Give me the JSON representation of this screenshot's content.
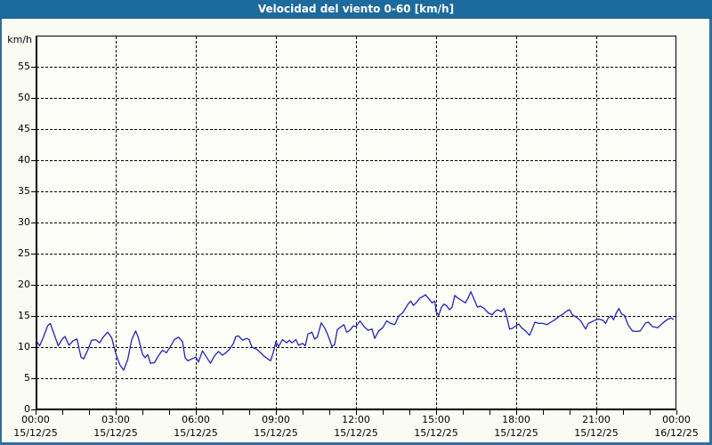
{
  "window": {
    "title": "Velocidad del viento 0-60 [km/h]"
  },
  "colors": {
    "titlebar_bg": "#1d6a9d",
    "frame_border": "#2e6fa3",
    "page_bg": "#fafbf2",
    "plot_bg": "#fefef9",
    "line": "#2121b8",
    "grid": "#000000",
    "title_text": "#ffffff",
    "label_text": "#000000"
  },
  "chart_data": {
    "type": "line",
    "title": "Velocidad del viento 0-60 [km/h]",
    "ylabel": "km/h",
    "ylim": [
      0,
      60
    ],
    "ytick_values": [
      0,
      5,
      10,
      15,
      20,
      25,
      30,
      35,
      40,
      45,
      50,
      55
    ],
    "x_hours_range": [
      0,
      24
    ],
    "minor_tick_every_hours": 1,
    "major_tick_every_hours": 3,
    "grid": "dashed",
    "legend_position": "none",
    "xticks": [
      {
        "hour": 0,
        "time": "00:00",
        "date": "15/12/25"
      },
      {
        "hour": 3,
        "time": "03:00",
        "date": "15/12/25"
      },
      {
        "hour": 6,
        "time": "06:00",
        "date": "15/12/25"
      },
      {
        "hour": 9,
        "time": "09:00",
        "date": "15/12/25"
      },
      {
        "hour": 12,
        "time": "12:00",
        "date": "15/12/25"
      },
      {
        "hour": 15,
        "time": "15:00",
        "date": "15/12/25"
      },
      {
        "hour": 18,
        "time": "18:00",
        "date": "15/12/25"
      },
      {
        "hour": 21,
        "time": "21:00",
        "date": "15/12/25"
      },
      {
        "hour": 24,
        "time": "00:00",
        "date": "16/12/25"
      }
    ],
    "series": [
      {
        "name": "Velocidad del viento",
        "units": "km/h",
        "points": [
          [
            0.0,
            11.2
          ],
          [
            0.15,
            10.2
          ],
          [
            0.3,
            11.7
          ],
          [
            0.45,
            13.4
          ],
          [
            0.55,
            13.8
          ],
          [
            0.7,
            12.0
          ],
          [
            0.85,
            10.2
          ],
          [
            1.0,
            11.3
          ],
          [
            1.1,
            11.7
          ],
          [
            1.25,
            10.3
          ],
          [
            1.4,
            11.0
          ],
          [
            1.55,
            11.3
          ],
          [
            1.7,
            8.4
          ],
          [
            1.8,
            8.1
          ],
          [
            1.95,
            9.5
          ],
          [
            2.1,
            11.1
          ],
          [
            2.25,
            11.2
          ],
          [
            2.4,
            10.7
          ],
          [
            2.55,
            11.7
          ],
          [
            2.7,
            12.4
          ],
          [
            2.85,
            11.5
          ],
          [
            3.0,
            9.0
          ],
          [
            3.15,
            7.2
          ],
          [
            3.3,
            6.3
          ],
          [
            3.45,
            8.0
          ],
          [
            3.6,
            11.2
          ],
          [
            3.75,
            12.6
          ],
          [
            3.85,
            11.5
          ],
          [
            4.0,
            8.9
          ],
          [
            4.1,
            8.3
          ],
          [
            4.2,
            8.8
          ],
          [
            4.3,
            7.4
          ],
          [
            4.45,
            7.5
          ],
          [
            4.6,
            8.6
          ],
          [
            4.75,
            9.5
          ],
          [
            4.9,
            9.1
          ],
          [
            5.05,
            10.1
          ],
          [
            5.2,
            11.2
          ],
          [
            5.35,
            11.6
          ],
          [
            5.5,
            10.9
          ],
          [
            5.6,
            8.3
          ],
          [
            5.7,
            7.8
          ],
          [
            5.85,
            8.1
          ],
          [
            6.0,
            8.4
          ],
          [
            6.1,
            7.6
          ],
          [
            6.25,
            9.4
          ],
          [
            6.4,
            8.4
          ],
          [
            6.55,
            7.4
          ],
          [
            6.7,
            8.6
          ],
          [
            6.85,
            9.3
          ],
          [
            7.0,
            8.7
          ],
          [
            7.1,
            9.0
          ],
          [
            7.25,
            9.6
          ],
          [
            7.4,
            10.5
          ],
          [
            7.5,
            11.7
          ],
          [
            7.6,
            11.8
          ],
          [
            7.75,
            11.1
          ],
          [
            7.9,
            11.4
          ],
          [
            8.0,
            11.2
          ],
          [
            8.1,
            10.0
          ],
          [
            8.3,
            9.6
          ],
          [
            8.45,
            9.0
          ],
          [
            8.6,
            8.4
          ],
          [
            8.8,
            7.8
          ],
          [
            8.9,
            9.1
          ],
          [
            9.0,
            10.9
          ],
          [
            9.1,
            10.1
          ],
          [
            9.25,
            11.2
          ],
          [
            9.4,
            10.7
          ],
          [
            9.5,
            11.1
          ],
          [
            9.6,
            10.7
          ],
          [
            9.75,
            11.2
          ],
          [
            9.85,
            10.3
          ],
          [
            10.0,
            10.6
          ],
          [
            10.1,
            10.2
          ],
          [
            10.2,
            12.1
          ],
          [
            10.35,
            12.4
          ],
          [
            10.45,
            11.3
          ],
          [
            10.55,
            11.6
          ],
          [
            10.7,
            13.9
          ],
          [
            10.85,
            12.9
          ],
          [
            10.95,
            11.9
          ],
          [
            11.1,
            10.1
          ],
          [
            11.2,
            10.4
          ],
          [
            11.3,
            12.8
          ],
          [
            11.45,
            13.3
          ],
          [
            11.55,
            13.6
          ],
          [
            11.65,
            12.4
          ],
          [
            11.75,
            12.6
          ],
          [
            11.9,
            13.4
          ],
          [
            12.0,
            13.3
          ],
          [
            12.15,
            14.2
          ],
          [
            12.3,
            13.3
          ],
          [
            12.45,
            12.7
          ],
          [
            12.6,
            12.9
          ],
          [
            12.7,
            11.4
          ],
          [
            12.85,
            12.6
          ],
          [
            13.0,
            13.1
          ],
          [
            13.15,
            14.2
          ],
          [
            13.3,
            13.8
          ],
          [
            13.45,
            13.6
          ],
          [
            13.6,
            15.0
          ],
          [
            13.75,
            15.5
          ],
          [
            13.95,
            16.9
          ],
          [
            14.05,
            17.4
          ],
          [
            14.15,
            16.7
          ],
          [
            14.25,
            17.1
          ],
          [
            14.4,
            17.9
          ],
          [
            14.5,
            18.1
          ],
          [
            14.6,
            18.4
          ],
          [
            14.7,
            17.9
          ],
          [
            14.85,
            17.1
          ],
          [
            14.95,
            17.4
          ],
          [
            15.0,
            15.7
          ],
          [
            15.1,
            15.1
          ],
          [
            15.2,
            16.4
          ],
          [
            15.3,
            16.9
          ],
          [
            15.4,
            16.6
          ],
          [
            15.5,
            16.0
          ],
          [
            15.6,
            16.4
          ],
          [
            15.7,
            18.3
          ],
          [
            15.8,
            17.9
          ],
          [
            15.95,
            17.5
          ],
          [
            16.1,
            17.1
          ],
          [
            16.2,
            17.9
          ],
          [
            16.3,
            18.9
          ],
          [
            16.45,
            17.4
          ],
          [
            16.55,
            16.4
          ],
          [
            16.65,
            16.6
          ],
          [
            16.8,
            16.2
          ],
          [
            16.95,
            15.5
          ],
          [
            17.1,
            15.2
          ],
          [
            17.2,
            15.7
          ],
          [
            17.3,
            16.0
          ],
          [
            17.45,
            15.7
          ],
          [
            17.55,
            16.2
          ],
          [
            17.65,
            14.8
          ],
          [
            17.75,
            12.9
          ],
          [
            17.85,
            13.0
          ],
          [
            17.95,
            13.3
          ],
          [
            18.1,
            13.7
          ],
          [
            18.2,
            13.1
          ],
          [
            18.35,
            12.6
          ],
          [
            18.5,
            11.9
          ],
          [
            18.6,
            12.9
          ],
          [
            18.7,
            14.0
          ],
          [
            18.85,
            13.8
          ],
          [
            19.0,
            13.8
          ],
          [
            19.15,
            13.6
          ],
          [
            19.3,
            14.0
          ],
          [
            19.45,
            14.4
          ],
          [
            19.6,
            14.9
          ],
          [
            19.75,
            15.3
          ],
          [
            19.9,
            15.8
          ],
          [
            20.0,
            16.0
          ],
          [
            20.1,
            15.2
          ],
          [
            20.25,
            14.8
          ],
          [
            20.4,
            14.3
          ],
          [
            20.5,
            13.6
          ],
          [
            20.6,
            12.9
          ],
          [
            20.7,
            13.8
          ],
          [
            20.85,
            14.1
          ],
          [
            21.0,
            14.4
          ],
          [
            21.1,
            14.5
          ],
          [
            21.25,
            14.3
          ],
          [
            21.35,
            13.8
          ],
          [
            21.45,
            14.7
          ],
          [
            21.55,
            15.0
          ],
          [
            21.65,
            14.4
          ],
          [
            21.75,
            15.5
          ],
          [
            21.85,
            16.2
          ],
          [
            21.95,
            15.3
          ],
          [
            22.05,
            15.1
          ],
          [
            22.2,
            13.5
          ],
          [
            22.35,
            12.6
          ],
          [
            22.5,
            12.5
          ],
          [
            22.65,
            12.6
          ],
          [
            22.85,
            13.9
          ],
          [
            22.95,
            14.0
          ],
          [
            23.1,
            13.3
          ],
          [
            23.3,
            13.1
          ],
          [
            23.5,
            13.9
          ],
          [
            23.65,
            14.4
          ],
          [
            23.8,
            14.7
          ],
          [
            23.9,
            14.4
          ]
        ]
      }
    ]
  }
}
